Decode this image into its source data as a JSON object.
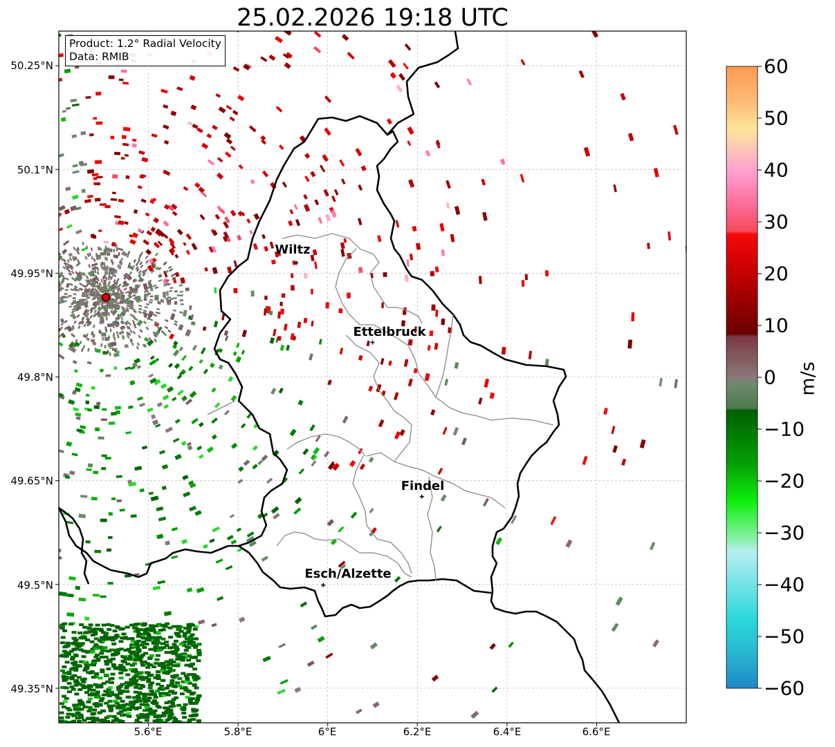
{
  "title": "25.02.2026 19:18 UTC",
  "info_box": {
    "product": "Product: 1.2° Radial Velocity",
    "data": "Data: RMIB"
  },
  "axes": {
    "lat_ticks": [
      "50.25°N",
      "50.1°N",
      "49.95°N",
      "49.8°N",
      "49.65°N",
      "49.5°N",
      "49.35°N"
    ],
    "lon_ticks": [
      "5.6°E",
      "5.8°E",
      "6°E",
      "6.2°E",
      "6.4°E",
      "6.6°E"
    ],
    "lon_range": [
      5.4,
      6.8
    ],
    "lat_range": [
      49.3,
      50.3
    ],
    "grid": true
  },
  "cities": [
    {
      "name": "Wiltz",
      "lon": 5.93,
      "lat": 49.965
    },
    {
      "name": "Ettelbruck",
      "lon": 6.1,
      "lat": 49.85
    },
    {
      "name": "Findel",
      "lon": 6.21,
      "lat": 49.627
    },
    {
      "name": "Esch/Alzette",
      "lon": 5.99,
      "lat": 49.499
    }
  ],
  "radar_site": {
    "lon": 5.505,
    "lat": 49.915
  },
  "colorbar": {
    "label": "m/s",
    "ticks": [
      "60",
      "50",
      "40",
      "30",
      "20",
      "10",
      "0",
      "−10",
      "−20",
      "−30",
      "−40",
      "−50",
      "−60"
    ],
    "range": [
      -60,
      60
    ],
    "colors": {
      "strong_away": "#fda05c",
      "away": "#ee0b0b",
      "weak_away": "#7a0000",
      "near_zero": "#8a7a7a",
      "weak_toward": "#5b8a5b",
      "toward": "#0a8a0a",
      "strong_toward": "#3ae83a",
      "very_strong_toward": "#2ad4dc"
    }
  }
}
